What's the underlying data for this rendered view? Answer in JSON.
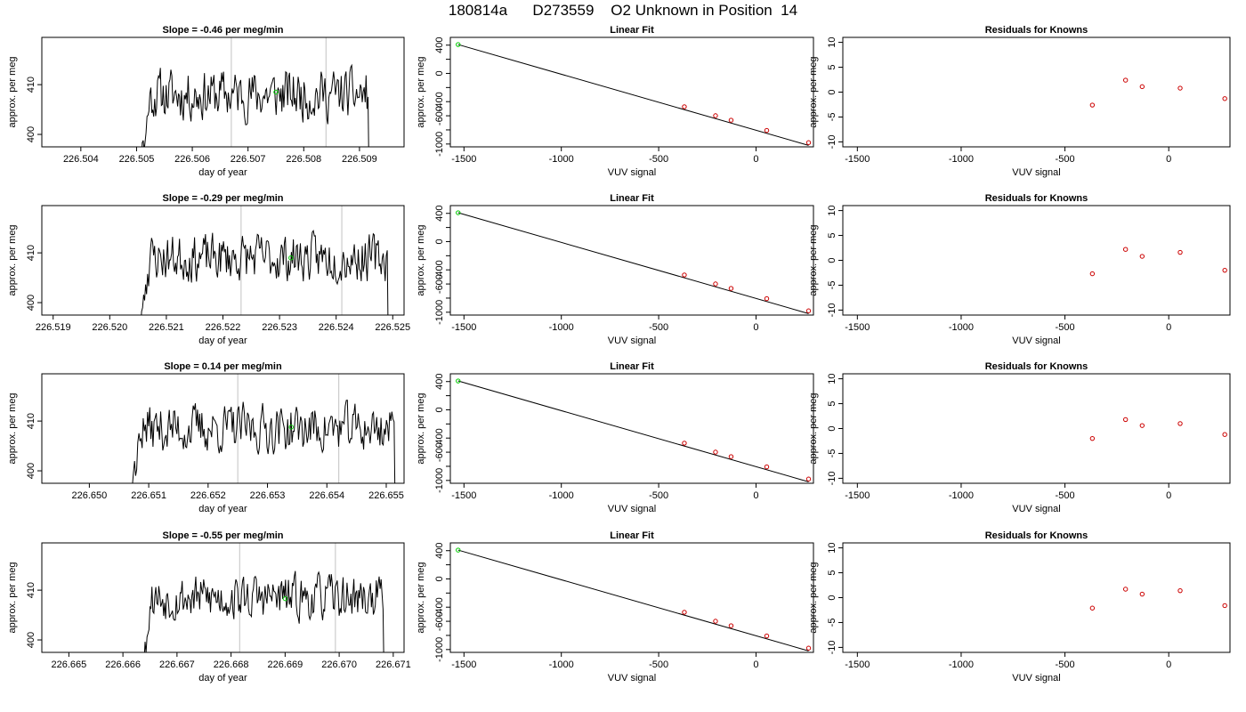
{
  "page": {
    "title": "180814a      D273559    O2 Unknown in Position  14"
  },
  "chart_data": [
    {
      "type": "line",
      "row": 1,
      "panel": "timeseries",
      "title": "Slope =  -0.46  per meg/min",
      "xlabel": "day of year",
      "ylabel": "approx. per meg",
      "xlim": [
        226.5033,
        226.5098
      ],
      "ylim": [
        397.5,
        419.5
      ],
      "x_ticks": [
        "226.504",
        "226.505",
        "226.506",
        "226.507",
        "226.508",
        "226.509"
      ],
      "x_tick_values": [
        226.504,
        226.505,
        226.506,
        226.507,
        226.508,
        226.509
      ],
      "y_ticks": [
        "400",
        "410"
      ],
      "y_tick_values": [
        400,
        410
      ],
      "vlines": [
        226.5067,
        226.5084
      ],
      "series": [
        {
          "x_start": 226.50505,
          "x_end": 226.50917,
          "n": 240,
          "start_value": 392,
          "mean": 408,
          "amplitude": 2.8,
          "end_value": 392,
          "seed": 11
        }
      ],
      "marker": {
        "x": 226.5075,
        "y": 408.5,
        "color": "#00cc00"
      }
    },
    {
      "type": "scatter",
      "row": 1,
      "panel": "linear-fit",
      "title": "Linear Fit",
      "xlabel": "VUV signal",
      "ylabel": "approx. per meg",
      "xlim": [
        -1570,
        295
      ],
      "ylim": [
        -1040,
        510
      ],
      "x_ticks": [
        "-1500",
        "-1000",
        "-500",
        "0"
      ],
      "x_tick_values": [
        -1500,
        -1000,
        -500,
        0
      ],
      "y_ticks": [
        "-1000",
        "-800",
        "-600",
        "-400",
        "-200",
        "0",
        "200",
        "400"
      ],
      "y_tick_values": [
        -1000,
        -800,
        -600,
        -400,
        -200,
        0,
        200,
        400
      ],
      "y_tick_labels_shown": [
        "-1000",
        "-600",
        "-400",
        "0",
        "400"
      ],
      "fit_line": {
        "x": [
          -1530,
          270
        ],
        "y": [
          408.5,
          -1019
        ]
      },
      "knowns": {
        "x": [
          -368,
          -208,
          -128,
          55,
          270
        ],
        "y": [
          -472,
          -599,
          -663,
          -808,
          -980
        ],
        "color": "#cc0000"
      },
      "unknown": {
        "x": [
          -1530
        ],
        "y": [
          408.5
        ],
        "color": "#00cc00"
      }
    },
    {
      "type": "scatter",
      "row": 1,
      "panel": "residuals",
      "title": "Residuals for Knowns",
      "xlabel": "VUV signal",
      "ylabel": "approx. per meg",
      "xlim": [
        -1570,
        295
      ],
      "ylim": [
        -11,
        11
      ],
      "x_ticks": [
        "-1500",
        "-1000",
        "-500",
        "0"
      ],
      "x_tick_values": [
        -1500,
        -1000,
        -500,
        0
      ],
      "y_ticks": [
        "-10",
        "-5",
        "0",
        "5",
        "10"
      ],
      "y_tick_values": [
        -10,
        -5,
        0,
        5,
        10
      ],
      "points": {
        "x": [
          -368,
          -208,
          -128,
          55,
          270
        ],
        "y": [
          -2.6,
          2.4,
          1.1,
          0.8,
          -1.3
        ],
        "color": "#cc0000"
      }
    },
    {
      "type": "line",
      "row": 2,
      "panel": "timeseries",
      "title": "Slope =  -0.29  per meg/min",
      "xlabel": "day of year",
      "ylabel": "approx. per meg",
      "xlim": [
        226.5188,
        226.5252
      ],
      "ylim": [
        397.5,
        419.5
      ],
      "x_ticks": [
        "226.519",
        "226.520",
        "226.521",
        "226.522",
        "226.523",
        "226.524",
        "226.525"
      ],
      "x_tick_values": [
        226.519,
        226.52,
        226.521,
        226.522,
        226.523,
        226.524,
        226.525
      ],
      "y_ticks": [
        "400",
        "410"
      ],
      "y_tick_values": [
        400,
        410
      ],
      "vlines": [
        226.52232,
        226.5241
      ],
      "series": [
        {
          "x_start": 226.52051,
          "x_end": 226.52492,
          "n": 250,
          "start_value": 392,
          "mean": 409,
          "amplitude": 2.6,
          "end_value": 392,
          "seed": 23
        }
      ],
      "marker": {
        "x": 226.5232,
        "y": 409.0,
        "color": "#00cc00"
      }
    },
    {
      "type": "scatter",
      "row": 2,
      "panel": "linear-fit",
      "title": "Linear Fit",
      "xlabel": "VUV signal",
      "ylabel": "approx. per meg",
      "xlim": [
        -1570,
        295
      ],
      "ylim": [
        -1040,
        510
      ],
      "x_ticks": [
        "-1500",
        "-1000",
        "-500",
        "0"
      ],
      "x_tick_values": [
        -1500,
        -1000,
        -500,
        0
      ],
      "y_ticks": [
        "-1000",
        "-800",
        "-600",
        "-400",
        "-200",
        "0",
        "200",
        "400"
      ],
      "y_tick_values": [
        -1000,
        -800,
        -600,
        -400,
        -200,
        0,
        200,
        400
      ],
      "y_tick_labels_shown": [
        "-1000",
        "-600",
        "-400",
        "0",
        "400"
      ],
      "fit_line": {
        "x": [
          -1530,
          270
        ],
        "y": [
          409,
          -1019
        ]
      },
      "knowns": {
        "x": [
          -368,
          -208,
          -128,
          55,
          270
        ],
        "y": [
          -472,
          -599,
          -663,
          -808,
          -980
        ],
        "color": "#cc0000"
      },
      "unknown": {
        "x": [
          -1530
        ],
        "y": [
          409
        ],
        "color": "#00cc00"
      }
    },
    {
      "type": "scatter",
      "row": 2,
      "panel": "residuals",
      "title": "Residuals for Knowns",
      "xlabel": "VUV signal",
      "ylabel": "approx. per meg",
      "xlim": [
        -1570,
        295
      ],
      "ylim": [
        -11,
        11
      ],
      "x_ticks": [
        "-1500",
        "-1000",
        "-500",
        "0"
      ],
      "x_tick_values": [
        -1500,
        -1000,
        -500,
        0
      ],
      "y_ticks": [
        "-10",
        "-5",
        "0",
        "5",
        "10"
      ],
      "y_tick_values": [
        -10,
        -5,
        0,
        5,
        10
      ],
      "points": {
        "x": [
          -368,
          -208,
          -128,
          55,
          270
        ],
        "y": [
          -2.7,
          2.2,
          0.8,
          1.6,
          -2.0
        ],
        "color": "#cc0000"
      }
    },
    {
      "type": "line",
      "row": 3,
      "panel": "timeseries",
      "title": "Slope =  0.14  per meg/min",
      "xlabel": "day of year",
      "ylabel": "approx. per meg",
      "xlim": [
        226.6492,
        226.6553
      ],
      "ylim": [
        397.5,
        419.5
      ],
      "x_ticks": [
        "226.650",
        "226.651",
        "226.652",
        "226.653",
        "226.654",
        "226.655"
      ],
      "x_tick_values": [
        226.65,
        226.651,
        226.652,
        226.653,
        226.654,
        226.655
      ],
      "y_ticks": [
        "400",
        "410"
      ],
      "y_tick_values": [
        400,
        410
      ],
      "vlines": [
        226.6525,
        226.6542
      ],
      "series": [
        {
          "x_start": 226.65067,
          "x_end": 226.65515,
          "n": 245,
          "start_value": 395,
          "mean": 408.5,
          "amplitude": 2.7,
          "end_value": 392,
          "seed": 37
        }
      ],
      "marker": {
        "x": 226.6534,
        "y": 408.8,
        "color": "#00cc00"
      }
    },
    {
      "type": "scatter",
      "row": 3,
      "panel": "linear-fit",
      "title": "Linear Fit",
      "xlabel": "VUV signal",
      "ylabel": "approx. per meg",
      "xlim": [
        -1570,
        295
      ],
      "ylim": [
        -1040,
        510
      ],
      "x_ticks": [
        "-1500",
        "-1000",
        "-500",
        "0"
      ],
      "x_tick_values": [
        -1500,
        -1000,
        -500,
        0
      ],
      "y_ticks": [
        "-1000",
        "-800",
        "-600",
        "-400",
        "-200",
        "0",
        "200",
        "400"
      ],
      "y_tick_values": [
        -1000,
        -800,
        -600,
        -400,
        -200,
        0,
        200,
        400
      ],
      "y_tick_labels_shown": [
        "-1000",
        "-600",
        "-400",
        "0",
        "400"
      ],
      "fit_line": {
        "x": [
          -1530,
          270
        ],
        "y": [
          408.8,
          -1019
        ]
      },
      "knowns": {
        "x": [
          -368,
          -208,
          -128,
          55,
          270
        ],
        "y": [
          -472,
          -599,
          -663,
          -808,
          -980
        ],
        "color": "#cc0000"
      },
      "unknown": {
        "x": [
          -1530
        ],
        "y": [
          408.8
        ],
        "color": "#00cc00"
      }
    },
    {
      "type": "scatter",
      "row": 3,
      "panel": "residuals",
      "title": "Residuals for Knowns",
      "xlabel": "VUV signal",
      "ylabel": "approx. per meg",
      "xlim": [
        -1570,
        295
      ],
      "ylim": [
        -11,
        11
      ],
      "x_ticks": [
        "-1500",
        "-1000",
        "-500",
        "0"
      ],
      "x_tick_values": [
        -1500,
        -1000,
        -500,
        0
      ],
      "y_ticks": [
        "-10",
        "-5",
        "0",
        "5",
        "10"
      ],
      "y_tick_values": [
        -10,
        -5,
        0,
        5,
        10
      ],
      "points": {
        "x": [
          -368,
          -208,
          -128,
          55,
          270
        ],
        "y": [
          -2.0,
          1.8,
          0.6,
          1.0,
          -1.2
        ],
        "color": "#cc0000"
      }
    },
    {
      "type": "line",
      "row": 4,
      "panel": "timeseries",
      "title": "Slope =  -0.55  per meg/min",
      "xlabel": "day of year",
      "ylabel": "approx. per meg",
      "xlim": [
        226.6645,
        226.6712
      ],
      "ylim": [
        397.5,
        419.5
      ],
      "x_ticks": [
        "226.665",
        "226.666",
        "226.667",
        "226.668",
        "226.669",
        "226.670",
        "226.671"
      ],
      "x_tick_values": [
        226.665,
        226.666,
        226.667,
        226.668,
        226.669,
        226.67,
        226.671
      ],
      "y_ticks": [
        "400",
        "410"
      ],
      "y_tick_values": [
        400,
        410
      ],
      "vlines": [
        226.66816,
        226.66993
      ],
      "series": [
        {
          "x_start": 226.66632,
          "x_end": 226.67083,
          "n": 250,
          "start_value": 392,
          "mean": 408.5,
          "amplitude": 2.5,
          "end_value": 392,
          "seed": 53
        }
      ],
      "marker": {
        "x": 226.669,
        "y": 408.3,
        "color": "#00cc00"
      }
    },
    {
      "type": "scatter",
      "row": 4,
      "panel": "linear-fit",
      "title": "Linear Fit",
      "xlabel": "VUV signal",
      "ylabel": "approx. per meg",
      "xlim": [
        -1570,
        295
      ],
      "ylim": [
        -1040,
        510
      ],
      "x_ticks": [
        "-1500",
        "-1000",
        "-500",
        "0"
      ],
      "x_tick_values": [
        -1500,
        -1000,
        -500,
        0
      ],
      "y_ticks": [
        "-1000",
        "-800",
        "-600",
        "-400",
        "-200",
        "0",
        "200",
        "400"
      ],
      "y_tick_values": [
        -1000,
        -800,
        -600,
        -400,
        -200,
        0,
        200,
        400
      ],
      "y_tick_labels_shown": [
        "-1000",
        "-600",
        "-400",
        "0",
        "400"
      ],
      "fit_line": {
        "x": [
          -1530,
          270
        ],
        "y": [
          408.3,
          -1019
        ]
      },
      "knowns": {
        "x": [
          -368,
          -208,
          -128,
          55,
          270
        ],
        "y": [
          -472,
          -599,
          -663,
          -808,
          -980
        ],
        "color": "#cc0000"
      },
      "unknown": {
        "x": [
          -1530
        ],
        "y": [
          408.3
        ],
        "color": "#00cc00"
      }
    },
    {
      "type": "scatter",
      "row": 4,
      "panel": "residuals",
      "title": "Residuals for Knowns",
      "xlabel": "VUV signal",
      "ylabel": "approx. per meg",
      "xlim": [
        -1570,
        295
      ],
      "ylim": [
        -11,
        11
      ],
      "x_ticks": [
        "-1500",
        "-1000",
        "-500",
        "0"
      ],
      "x_tick_values": [
        -1500,
        -1000,
        -500,
        0
      ],
      "y_ticks": [
        "-10",
        "-5",
        "0",
        "5",
        "10"
      ],
      "y_tick_values": [
        -10,
        -5,
        0,
        5,
        10
      ],
      "points": {
        "x": [
          -368,
          -208,
          -128,
          55,
          270
        ],
        "y": [
          -2.1,
          1.7,
          0.7,
          1.4,
          -1.6
        ],
        "color": "#cc0000"
      }
    }
  ]
}
